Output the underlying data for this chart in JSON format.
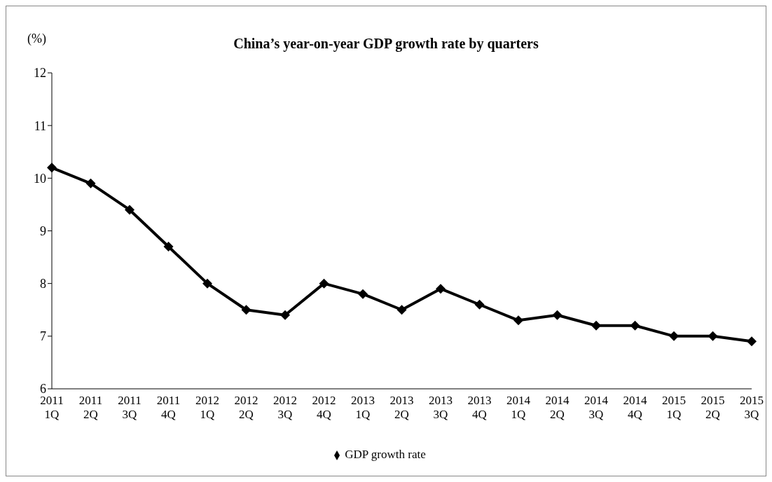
{
  "chart_data": {
    "type": "line",
    "title": "China’s year-on-year GDP growth rate by quarters",
    "ylabel": "(%)",
    "categories": [
      "2011 1Q",
      "2011 2Q",
      "2011 3Q",
      "2011 4Q",
      "2012 1Q",
      "2012 2Q",
      "2012 3Q",
      "2012 4Q",
      "2013 1Q",
      "2013 2Q",
      "2013 3Q",
      "2013 4Q",
      "2014 1Q",
      "2014 2Q",
      "2014 3Q",
      "2014 4Q",
      "2015 1Q",
      "2015 2Q",
      "2015 3Q"
    ],
    "series": [
      {
        "name": "GDP growth rate",
        "color": "#000000",
        "values": [
          10.2,
          9.9,
          9.4,
          8.7,
          8.0,
          7.5,
          7.4,
          8.0,
          7.8,
          7.5,
          7.9,
          7.6,
          7.3,
          7.4,
          7.2,
          7.2,
          7.0,
          7.0,
          6.9
        ]
      }
    ],
    "ylim": [
      6,
      12
    ],
    "yticks": [
      6,
      7,
      8,
      9,
      10,
      11,
      12
    ],
    "grid": false,
    "legend": "bottom",
    "marker": "diamond",
    "line_style": "solid"
  }
}
